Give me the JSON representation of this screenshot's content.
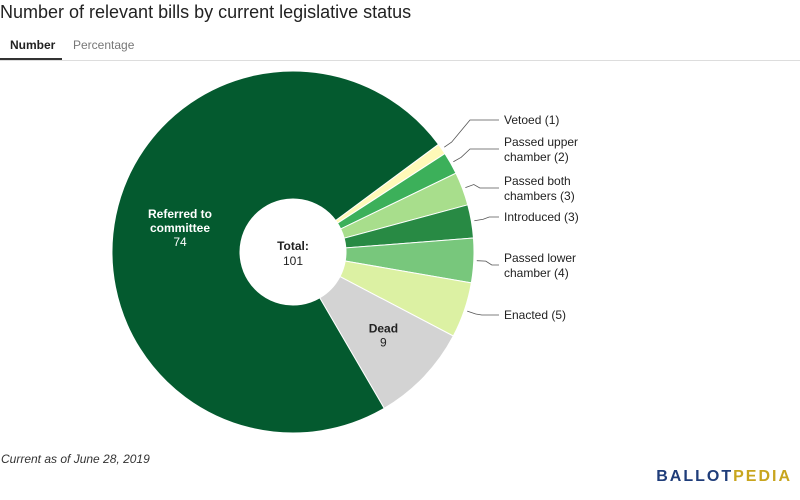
{
  "header": {
    "title": "Number of relevant bills by current legislative status"
  },
  "tabs": [
    {
      "label": "Number"
    },
    {
      "label": "Percentage"
    }
  ],
  "footnote": "Current as of June 28, 2019",
  "logo": {
    "part1": "BALLOT",
    "part2": "PEDIA"
  },
  "chart_data": {
    "type": "pie",
    "title": "Number of relevant bills by current legislative status",
    "center_label": "Total:",
    "total": 101,
    "slices": [
      {
        "label": "Vetoed",
        "value": 1,
        "color": "#fff9b8"
      },
      {
        "label": "Passed upper chamber",
        "value": 2,
        "color": "#3cb05a"
      },
      {
        "label": "Passed both chambers",
        "value": 3,
        "color": "#a8de8c"
      },
      {
        "label": "Introduced",
        "value": 3,
        "color": "#288a44"
      },
      {
        "label": "Passed lower chamber",
        "value": 4,
        "color": "#78c77c"
      },
      {
        "label": "Enacted",
        "value": 5,
        "color": "#dcf1a3"
      },
      {
        "label": "Dead",
        "value": 9,
        "color": "#d3d3d3"
      },
      {
        "label": "Referred to committee",
        "value": 74,
        "color": "#045a2f"
      }
    ]
  }
}
